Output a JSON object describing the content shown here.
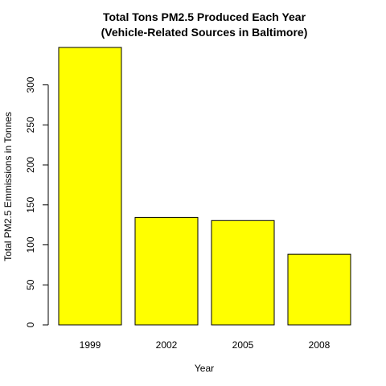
{
  "chart_data": {
    "type": "bar",
    "title": [
      "Total Tons PM2.5 Produced Each Year",
      "(Vehicle-Related Sources in Baltimore)"
    ],
    "xlabel": "Year",
    "ylabel": "Total PM2.5 Emmissions in Tonnes",
    "categories": [
      "1999",
      "2002",
      "2005",
      "2008"
    ],
    "values": [
      346.8,
      134.3,
      130.4,
      88.3
    ],
    "ylim": [
      0,
      346.8
    ],
    "yticks": [
      0,
      50,
      100,
      150,
      200,
      250,
      300
    ],
    "grid": false,
    "legend": "none",
    "bar_color": "#FFFF00",
    "border_color": "#000000"
  }
}
